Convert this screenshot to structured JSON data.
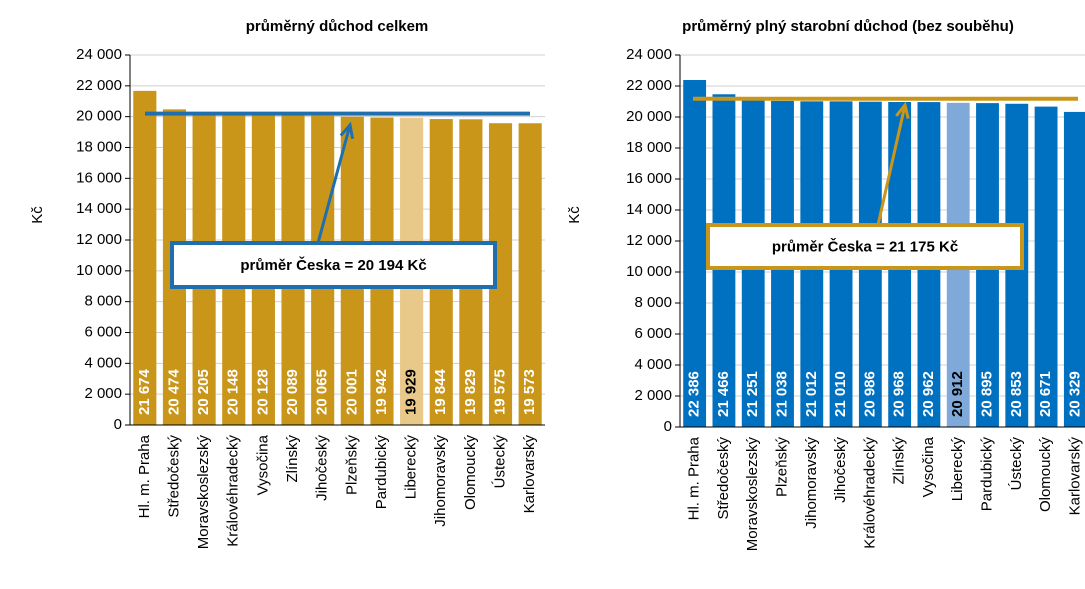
{
  "chart_data": [
    {
      "type": "bar",
      "title": "průměrný důchod celkem",
      "y_label": "Kč",
      "categories": [
        "Hl. m. Praha",
        "Středočeský",
        "Moravskoslezský",
        "Královéhradecký",
        "Vysočina",
        "Zlínský",
        "Jihočeský",
        "Plzeňský",
        "Pardubický",
        "Liberecký",
        "Jihomoravský",
        "Olomoucký",
        "Ústecký",
        "Karlovarský"
      ],
      "values": [
        21674,
        20474,
        20205,
        20148,
        20128,
        20089,
        20065,
        20001,
        19942,
        19929,
        19844,
        19829,
        19575,
        19573
      ],
      "value_labels": [
        "21 674",
        "20 474",
        "20 205",
        "20 148",
        "20 128",
        "20 089",
        "20 065",
        "20 001",
        "19 942",
        "19 929",
        "19 844",
        "19 829",
        "19 575",
        "19 573"
      ],
      "colors": [
        "#c9961a",
        "#c9961a",
        "#c9961a",
        "#c9961a",
        "#c9961a",
        "#c9961a",
        "#c9961a",
        "#c9961a",
        "#c9961a",
        "#e8c98a",
        "#c9961a",
        "#c9961a",
        "#c9961a",
        "#c9961a"
      ],
      "label_colors": [
        "#ffffff",
        "#ffffff",
        "#ffffff",
        "#ffffff",
        "#ffffff",
        "#ffffff",
        "#ffffff",
        "#ffffff",
        "#ffffff",
        "#000000",
        "#ffffff",
        "#ffffff",
        "#ffffff",
        "#ffffff"
      ],
      "reference_line": {
        "value": 20194,
        "label": "průměr Česka = 20 194 Kč",
        "color": "#1f6fae"
      },
      "ylim": [
        0,
        24000
      ],
      "yticks": [
        0,
        {
          "value": 2000,
          "label": "2 000"
        },
        {
          "value": 4000,
          "label": "4 000"
        },
        {
          "value": 6000,
          "label": "6 000"
        },
        {
          "value": 8000,
          "label": "8 000"
        },
        {
          "value": 10000,
          "label": "10 000"
        },
        {
          "value": 12000,
          "label": "12 000"
        },
        {
          "value": 14000,
          "label": "14 000"
        },
        {
          "value": 16000,
          "label": "16 000"
        },
        {
          "value": 18000,
          "label": "18 000"
        },
        {
          "value": 20000,
          "label": "20 000"
        },
        {
          "value": 22000,
          "label": "22 000"
        },
        {
          "value": 24000,
          "label": "24 000"
        }
      ],
      "grid": true
    },
    {
      "type": "bar",
      "title": "průměrný plný starobní důchod (bez souběhu)",
      "y_label": "Kč",
      "categories": [
        "Hl. m. Praha",
        "Středočeský",
        "Moravskoslezský",
        "Plzeňský",
        "Jihomoravský",
        "Jihočeský",
        "Královéhradecký",
        "Zlínský",
        "Vysočina",
        "Liberecký",
        "Pardubický",
        "Ústecký",
        "Olomoucký",
        "Karlovarský"
      ],
      "values": [
        22386,
        21466,
        21251,
        21038,
        21012,
        21010,
        20986,
        20968,
        20962,
        20912,
        20895,
        20853,
        20671,
        20329
      ],
      "value_labels": [
        "22 386",
        "21 466",
        "21 251",
        "21 038",
        "21 012",
        "21 010",
        "20 986",
        "20 968",
        "20 962",
        "20 912",
        "20 895",
        "20 853",
        "20 671",
        "20 329"
      ],
      "colors": [
        "#0070c0",
        "#0070c0",
        "#0070c0",
        "#0070c0",
        "#0070c0",
        "#0070c0",
        "#0070c0",
        "#0070c0",
        "#0070c0",
        "#7fa9d8",
        "#0070c0",
        "#0070c0",
        "#0070c0",
        "#0070c0"
      ],
      "label_colors": [
        "#ffffff",
        "#ffffff",
        "#ffffff",
        "#ffffff",
        "#ffffff",
        "#ffffff",
        "#ffffff",
        "#ffffff",
        "#ffffff",
        "#000000",
        "#ffffff",
        "#ffffff",
        "#ffffff",
        "#ffffff"
      ],
      "reference_line": {
        "value": 21175,
        "label": "průměr Česka = 21 175 Kč",
        "color": "#c9961a"
      },
      "ylim": [
        0,
        24000
      ],
      "yticks": [
        0,
        {
          "value": 2000,
          "label": "2 000"
        },
        {
          "value": 4000,
          "label": "4 000"
        },
        {
          "value": 6000,
          "label": "6 000"
        },
        {
          "value": 8000,
          "label": "8 000"
        },
        {
          "value": 10000,
          "label": "10 000"
        },
        {
          "value": 12000,
          "label": "12 000"
        },
        {
          "value": 14000,
          "label": "14 000"
        },
        {
          "value": 16000,
          "label": "16 000"
        },
        {
          "value": 18000,
          "label": "18 000"
        },
        {
          "value": 20000,
          "label": "20 000"
        },
        {
          "value": 22000,
          "label": "22 000"
        },
        {
          "value": 24000,
          "label": "24 000"
        }
      ],
      "grid": true
    }
  ]
}
